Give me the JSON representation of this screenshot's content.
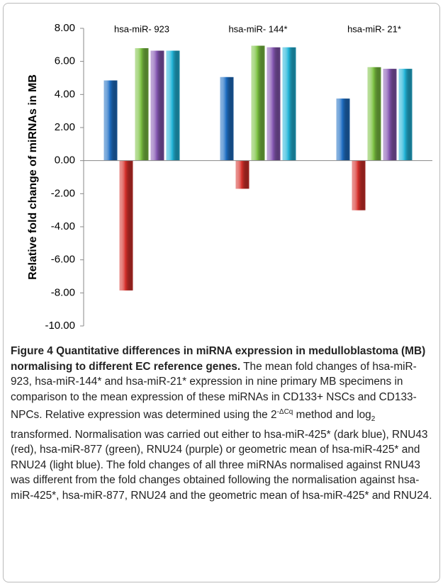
{
  "chart_data": {
    "type": "bar",
    "ylabel": "Relative fold change of miRNAs in MB",
    "categories": [
      "hsa-miR- 923",
      "hsa-miR- 144*",
      "hsa-miR- 21*"
    ],
    "series": [
      {
        "color": "#1f6fc4",
        "values": [
          4.85,
          5.05,
          3.75
        ]
      },
      {
        "color": "#d6302b",
        "values": [
          -7.85,
          -1.7,
          -3.0
        ]
      },
      {
        "color": "#7cc242",
        "values": [
          6.8,
          6.95,
          5.65
        ]
      },
      {
        "color": "#8658b3",
        "values": [
          6.65,
          6.85,
          5.55
        ]
      },
      {
        "color": "#22b5d9",
        "values": [
          6.65,
          6.85,
          5.55
        ]
      }
    ],
    "ylim": [
      -10,
      8
    ],
    "yticks": [
      {
        "value": -10,
        "label": "-10.00"
      },
      {
        "value": -8,
        "label": "-8.00"
      },
      {
        "value": -6,
        "label": "-6.00"
      },
      {
        "value": -4,
        "label": "-4.00"
      },
      {
        "value": -2,
        "label": "-2.00"
      },
      {
        "value": 0,
        "label": "0.00"
      },
      {
        "value": 2,
        "label": "2.00"
      },
      {
        "value": 4,
        "label": "4.00"
      },
      {
        "value": 6,
        "label": "6.00"
      },
      {
        "value": 8,
        "label": "8.00"
      }
    ]
  },
  "caption": {
    "title": "Figure 4 Quantitative differences in miRNA expression in medulloblastoma (MB) normalising to different EC reference genes.",
    "text": [
      " The mean fold changes of hsa-miR-923, hsa-miR-144* and hsa-miR-21* expression in nine primary MB specimens in comparison to the mean expression of these miRNAs in CD133+ NSCs and CD133- NPCs. Relative expression was determined using the ",
      "2",
      "-ΔCq",
      " method and log",
      "2",
      " transformed. Normalisation was carried out either to hsa-miR-425* (dark blue), RNU43 (red), hsa-miR-877 (green), RNU24 (purple) or geometric mean of hsa-miR-425* and RNU24 (light blue). The fold changes of all three miRNAs normalised against RNU43 was different from the fold changes obtained following the normalisation against hsa-miR-425*, hsa-miR-877, RNU24 and the geometric mean of hsa-miR-425* and RNU24."
    ]
  }
}
